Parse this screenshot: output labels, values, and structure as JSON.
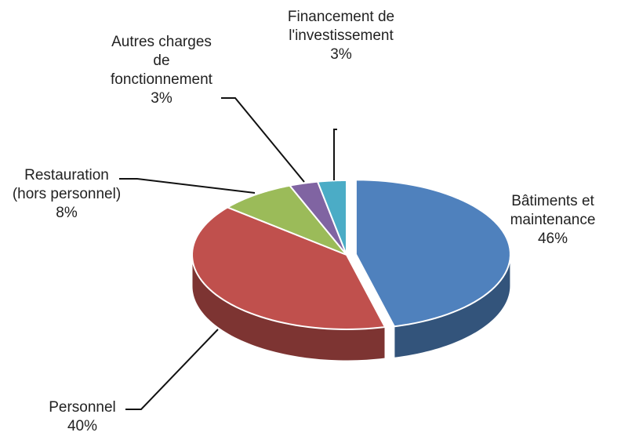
{
  "chart_data": {
    "type": "pie",
    "categories": [
      "Bâtiments et maintenance",
      "Personnel",
      "Restauration (hors personnel)",
      "Autres charges de fonctionnement",
      "Financement de l'investissement"
    ],
    "values": [
      46,
      40,
      8,
      3,
      3
    ],
    "value_labels": [
      "46%",
      "40%",
      "8%",
      "3%",
      "3%"
    ],
    "colors": [
      "#4f81bd",
      "#c0504d",
      "#9bbb59",
      "#8064a2",
      "#4bacc6"
    ]
  }
}
